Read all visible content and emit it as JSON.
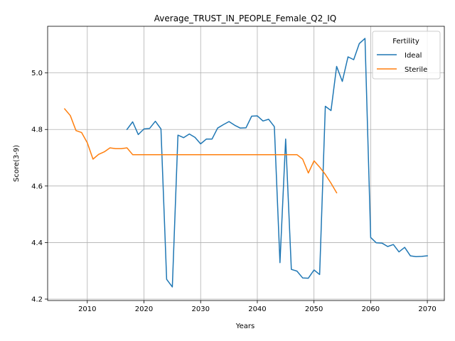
{
  "chart_data": {
    "type": "line",
    "title": "Average_TRUST_IN_PEOPLE_Female_Q2_IQ",
    "xlabel": "Years",
    "ylabel": "Score(3-9)",
    "xlim": [
      2003,
      2073
    ],
    "ylim": [
      4.195,
      5.165
    ],
    "xticks": [
      2010,
      2020,
      2030,
      2040,
      2050,
      2060,
      2070
    ],
    "yticks": [
      4.2,
      4.4,
      4.6,
      4.8,
      5.0
    ],
    "ytick_labels": [
      "4.2",
      "4.4",
      "4.6",
      "4.8",
      "5.0"
    ],
    "grid": true,
    "legend": {
      "title": "Fertility",
      "position": "top-right"
    },
    "series": [
      {
        "name": "Ideal",
        "color": "#1f77b4",
        "x": [
          2017,
          2018,
          2019,
          2020,
          2021,
          2022,
          2023,
          2024,
          2025,
          2026,
          2027,
          2028,
          2029,
          2030,
          2031,
          2032,
          2033,
          2034,
          2035,
          2036,
          2037,
          2038,
          2039,
          2040,
          2041,
          2042,
          2043,
          2044,
          2045,
          2046,
          2047,
          2048,
          2049,
          2050,
          2051,
          2052,
          2053,
          2054,
          2055,
          2056,
          2057,
          2058,
          2059,
          2060,
          2061,
          2062,
          2063,
          2064,
          2065,
          2066,
          2067,
          2068,
          2069,
          2070
        ],
        "y": [
          4.8,
          4.827,
          4.782,
          4.802,
          4.804,
          4.829,
          4.802,
          4.27,
          4.243,
          4.78,
          4.771,
          4.784,
          4.772,
          4.749,
          4.766,
          4.766,
          4.805,
          4.817,
          4.828,
          4.815,
          4.805,
          4.806,
          4.847,
          4.848,
          4.83,
          4.836,
          4.81,
          4.329,
          4.766,
          4.305,
          4.299,
          4.275,
          4.274,
          4.303,
          4.287,
          4.882,
          4.867,
          5.023,
          4.97,
          5.057,
          5.047,
          5.104,
          5.122,
          4.418,
          4.399,
          4.398,
          4.386,
          4.393,
          4.367,
          4.383,
          4.353,
          4.35,
          4.351,
          4.353
        ]
      },
      {
        "name": "Sterile",
        "color": "#ff7f0e",
        "x": [
          2006,
          2007,
          2008,
          2009,
          2010,
          2011,
          2012,
          2013,
          2014,
          2015,
          2016,
          2017,
          2018,
          2019,
          2020,
          2021,
          2022,
          2023,
          2024,
          2025,
          2026,
          2027,
          2028,
          2029,
          2030,
          2031,
          2032,
          2033,
          2034,
          2035,
          2036,
          2037,
          2038,
          2039,
          2040,
          2041,
          2042,
          2043,
          2044,
          2045,
          2046,
          2047,
          2048,
          2049,
          2050,
          2051,
          2052,
          2053,
          2054
        ],
        "y": [
          4.873,
          4.849,
          4.796,
          4.789,
          4.753,
          4.695,
          4.712,
          4.721,
          4.735,
          4.732,
          4.732,
          4.735,
          4.711,
          4.711,
          4.711,
          4.711,
          4.711,
          4.711,
          4.711,
          4.711,
          4.711,
          4.711,
          4.711,
          4.711,
          4.711,
          4.711,
          4.711,
          4.711,
          4.711,
          4.711,
          4.711,
          4.711,
          4.711,
          4.711,
          4.711,
          4.711,
          4.711,
          4.711,
          4.711,
          4.711,
          4.711,
          4.711,
          4.695,
          4.646,
          4.689,
          4.667,
          4.641,
          4.61,
          4.576
        ]
      }
    ]
  }
}
